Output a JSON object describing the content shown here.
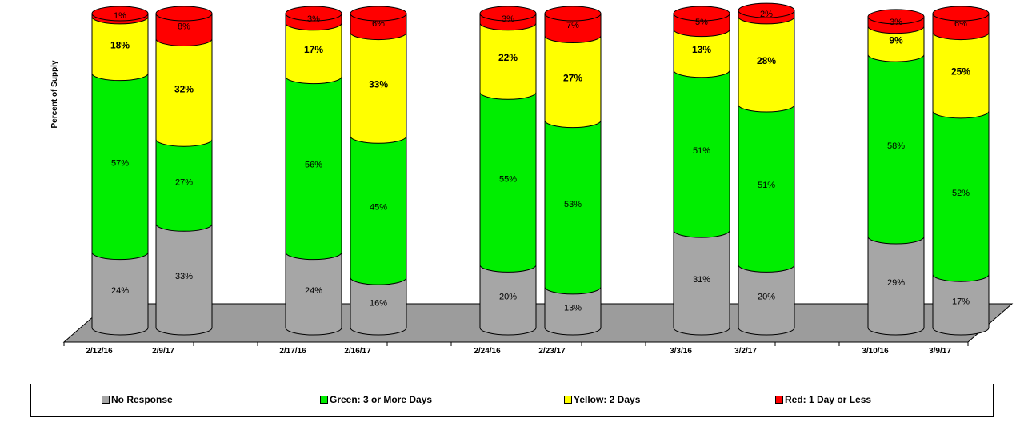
{
  "chart_data": {
    "type": "bar",
    "stacked": true,
    "style": "3d-cylinder",
    "ylabel": "Percent of Supply",
    "legend_position": "bottom",
    "categories": [
      "2/12/16",
      "2/9/17",
      "2/17/16",
      "2/16/17",
      "2/24/16",
      "2/23/17",
      "3/3/16",
      "3/2/17",
      "3/10/16",
      "3/9/17"
    ],
    "series": [
      {
        "name": "No Response",
        "color": "#a6a6a6",
        "values": [
          24,
          33,
          24,
          16,
          20,
          13,
          31,
          20,
          29,
          17
        ]
      },
      {
        "name": "Green: 3 or More Days",
        "color": "#00ee00",
        "values": [
          57,
          27,
          56,
          45,
          55,
          53,
          51,
          51,
          58,
          52
        ]
      },
      {
        "name": "Yellow: 2 Days",
        "color": "#ffff00",
        "values": [
          18,
          32,
          17,
          33,
          22,
          27,
          13,
          28,
          9,
          25
        ]
      },
      {
        "name": "Red: 1 Day or Less",
        "color": "#ff0000",
        "values": [
          1,
          8,
          3,
          6,
          3,
          7,
          5,
          2,
          3,
          6
        ]
      }
    ],
    "label_weights": [
      "normal",
      "normal",
      "bold",
      "normal"
    ]
  }
}
